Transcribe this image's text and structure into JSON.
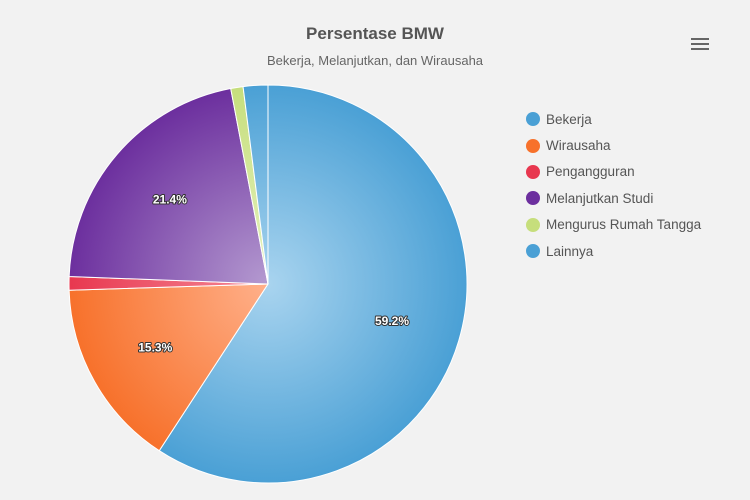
{
  "header": {
    "title": "Persentase BMW",
    "subtitle": "Bekerja, Melanjutkan, dan Wirausaha",
    "menu_icon": "hamburger-menu-icon"
  },
  "chart_data": {
    "type": "pie",
    "title": "Persentase BMW",
    "subtitle": "Bekerja, Melanjutkan, dan Wirausaha",
    "legend_position": "right",
    "series": [
      {
        "slices": [
          {
            "name": "Bekerja",
            "value": 59.2,
            "label": "59.2%",
            "color": "#4aa0d5",
            "light": "#a9d4ef"
          },
          {
            "name": "Wirausaha",
            "value": 15.3,
            "label": "15.3%",
            "color": "#f7712b",
            "light": "#ffb08a"
          },
          {
            "name": "Pengangguran",
            "value": 1.1,
            "label": "",
            "color": "#e8374f",
            "light": "#f58a98"
          },
          {
            "name": "Melanjutkan Studi",
            "value": 21.4,
            "label": "21.4%",
            "color": "#6c2f9e",
            "light": "#b49ad0"
          },
          {
            "name": "Mengurus Rumah Tangga",
            "value": 1.0,
            "label": "",
            "color": "#c6de7c",
            "light": "#e6f2c0"
          },
          {
            "name": "Lainnya",
            "value": 2.0,
            "label": "",
            "color": "#4aa0d5",
            "light": "#a9d4ef"
          }
        ]
      }
    ]
  }
}
